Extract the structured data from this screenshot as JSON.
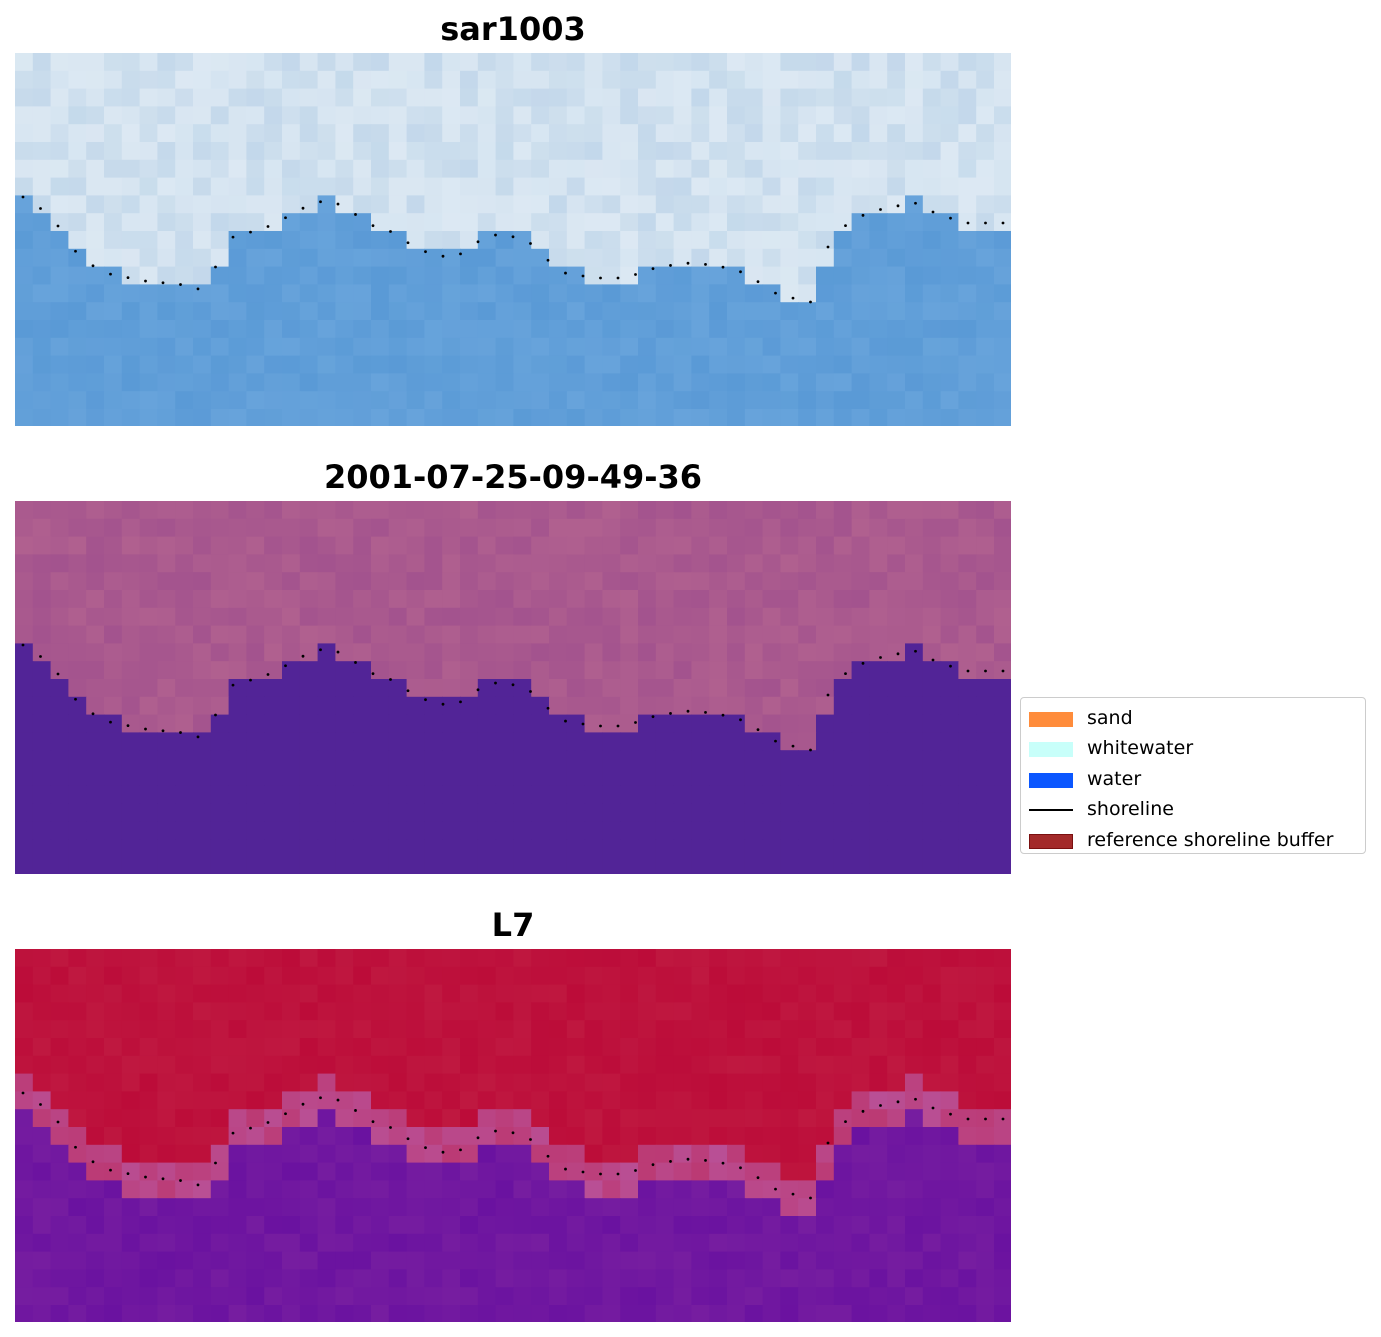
{
  "panels": [
    {
      "title": "sar1003",
      "colormap": "rgb-blue"
    },
    {
      "title": "2001-07-25-09-49-36",
      "colormap": "classified-purple"
    },
    {
      "title": "L7",
      "colormap": "red-purple"
    }
  ],
  "legend": {
    "items": [
      {
        "label": "sand",
        "kind": "patch",
        "color": "#ff8c3b"
      },
      {
        "label": "whitewater",
        "kind": "patch",
        "color": "#c8fffa"
      },
      {
        "label": "water",
        "kind": "patch",
        "color": "#0b57ff"
      },
      {
        "label": "shoreline",
        "kind": "line",
        "color": "#000000"
      },
      {
        "label": "reference shoreline buffer",
        "kind": "patch",
        "color": "#a32a2a",
        "edge": "#7a1010"
      }
    ]
  },
  "colors": {
    "panel1_sky": "#cfe0ee",
    "panel1_water": "#5a9ad6",
    "panel2_land": "#b0608f",
    "panel2_water": "#522497",
    "panel3_land": "#bf1840",
    "panel3_water": "#6a12a0",
    "shoreline_dots": "#000000"
  }
}
